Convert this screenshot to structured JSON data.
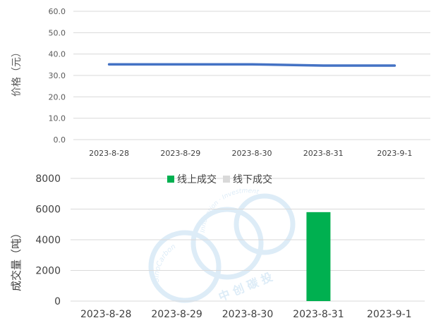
{
  "chart_data": [
    {
      "type": "line",
      "ylabel": "价格（元）",
      "x": [
        "2023-8-28",
        "2023-8-29",
        "2023-8-30",
        "2023-8-31",
        "2023-9-1"
      ],
      "series": [
        {
          "values": [
            35.2,
            35.2,
            35.2,
            34.6,
            34.6
          ]
        }
      ],
      "ylim": [
        0,
        60
      ],
      "yticks": [
        "0.0",
        "10.0",
        "20.0",
        "30.0",
        "40.0",
        "50.0",
        "60.0"
      ],
      "grid": true,
      "color": "#4472C4"
    },
    {
      "type": "bar",
      "ylabel": "成交量（吨）",
      "categories": [
        "2023-8-28",
        "2023-8-29",
        "2023-8-30",
        "2023-8-31",
        "2023-9-1"
      ],
      "series": [
        {
          "name": "线上成交",
          "values": [
            0,
            0,
            0,
            5800,
            0
          ],
          "color": "#00B050"
        },
        {
          "name": "线下成交",
          "values": [
            0,
            0,
            0,
            0,
            0
          ],
          "color": "#D9D9D9"
        }
      ],
      "ylim": [
        0,
        8000
      ],
      "yticks": [
        "0",
        "2000",
        "4000",
        "6000",
        "8000"
      ],
      "grid": true,
      "legend": "top-center"
    }
  ],
  "watermark": {
    "arc_text_1": "SinoCarbon",
    "arc_text_2": "Innovation · Investment",
    "bottom_text": "中 创 碳 投",
    "color": "#9FC9EA"
  }
}
